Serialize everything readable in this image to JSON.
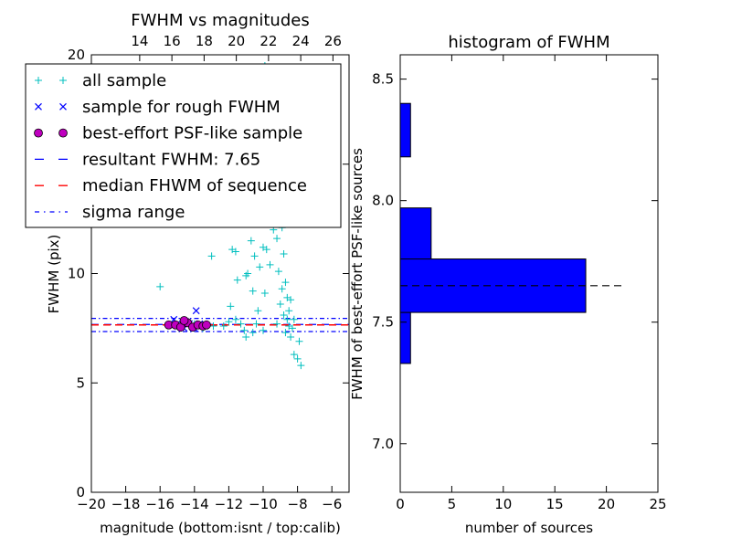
{
  "chart_data": [
    {
      "type": "scatter",
      "title": "FWHM vs magnitudes",
      "xlabel": "magnitude (bottom:isnt / top:calib)",
      "ylabel": "FWHM (pix)",
      "xlim": [
        -20,
        -5
      ],
      "ylim": [
        0,
        20
      ],
      "xticks": [
        "−20",
        "−18",
        "−16",
        "−14",
        "−12",
        "−10",
        "−8",
        "−6"
      ],
      "xtick_values": [
        -20,
        -18,
        -16,
        -14,
        -12,
        -10,
        -8,
        -6
      ],
      "yticks": [
        "0",
        "5",
        "10",
        "15",
        "20"
      ],
      "ytick_values": [
        0,
        5,
        10,
        15,
        20
      ],
      "top_axis": {
        "ticks": [
          "14",
          "16",
          "18",
          "20",
          "22",
          "24",
          "26"
        ],
        "tick_values": [
          14,
          16,
          18,
          20,
          22,
          24,
          26
        ],
        "xlim": [
          11,
          27
        ]
      },
      "legend_position": "top-left",
      "legend": [
        "all sample",
        "sample for rough FWHM",
        "best-effort PSF-like sample",
        "resultant FWHM: 7.65",
        "median FHWM of sequence",
        "sigma range"
      ],
      "colors": {
        "all_sample": "#00bfbf",
        "rough": "#0000ff",
        "best_face": "#bf00bf",
        "resultant_line": "#0000ff",
        "median_line": "#ff0000",
        "sigma_line": "#0000ff"
      },
      "series": [
        {
          "name": "all sample",
          "marker": "plus",
          "points": [
            [
              -16.0,
              9.4
            ],
            [
              -14.0,
              7.7
            ],
            [
              -13.5,
              7.5
            ],
            [
              -12.9,
              7.6
            ],
            [
              -13.0,
              10.8
            ],
            [
              -12.3,
              7.6
            ],
            [
              -11.9,
              8.5
            ],
            [
              -11.8,
              11.1
            ],
            [
              -11.6,
              11.0
            ],
            [
              -11.6,
              7.9
            ],
            [
              -11.5,
              9.7
            ],
            [
              -11.3,
              7.7
            ],
            [
              -11.1,
              7.4
            ],
            [
              -11.0,
              9.9
            ],
            [
              -10.9,
              10.0
            ],
            [
              -10.8,
              12.3
            ],
            [
              -10.7,
              11.5
            ],
            [
              -10.6,
              9.2
            ],
            [
              -10.5,
              10.8
            ],
            [
              -10.4,
              7.7
            ],
            [
              -10.3,
              8.3
            ],
            [
              -10.2,
              10.3
            ],
            [
              -10.1,
              12.5
            ],
            [
              -10.0,
              11.2
            ],
            [
              -10.0,
              7.4
            ],
            [
              -9.9,
              9.1
            ],
            [
              -9.8,
              11.1
            ],
            [
              -9.7,
              12.8
            ],
            [
              -9.6,
              10.4
            ],
            [
              -9.5,
              13.5
            ],
            [
              -9.4,
              12.0
            ],
            [
              -9.3,
              14.0
            ],
            [
              -9.2,
              11.6
            ],
            [
              -9.1,
              10.1
            ],
            [
              -9.0,
              8.6
            ],
            [
              -9.0,
              14.7
            ],
            [
              -8.9,
              9.3
            ],
            [
              -8.9,
              12.1
            ],
            [
              -8.8,
              10.9
            ],
            [
              -8.8,
              8.1
            ],
            [
              -8.7,
              9.6
            ],
            [
              -8.7,
              7.3
            ],
            [
              -8.6,
              8.9
            ],
            [
              -8.6,
              7.9
            ],
            [
              -8.5,
              8.3
            ],
            [
              -8.5,
              7.6
            ],
            [
              -8.4,
              8.8
            ],
            [
              -8.4,
              7.1
            ],
            [
              -8.3,
              7.5
            ],
            [
              -8.2,
              7.9
            ],
            [
              -8.2,
              6.3
            ],
            [
              -8.0,
              6.1
            ],
            [
              -7.9,
              6.9
            ],
            [
              -7.8,
              5.8
            ],
            [
              -9.5,
              19.2
            ],
            [
              -9.9,
              19.5
            ],
            [
              -11.0,
              7.1
            ],
            [
              -12.0,
              7.8
            ],
            [
              -10.6,
              7.3
            ],
            [
              -9.2,
              7.7
            ]
          ]
        },
        {
          "name": "sample for rough FWHM",
          "marker": "x",
          "points": [
            [
              -15.2,
              7.9
            ],
            [
              -15.0,
              7.7
            ],
            [
              -14.8,
              7.6
            ],
            [
              -14.5,
              7.8
            ],
            [
              -14.3,
              7.7
            ],
            [
              -14.0,
              7.5
            ],
            [
              -13.9,
              8.3
            ],
            [
              -13.7,
              7.7
            ],
            [
              -13.4,
              7.6
            ],
            [
              -14.6,
              7.5
            ]
          ]
        },
        {
          "name": "best-effort PSF-like sample",
          "marker": "circle",
          "points": [
            [
              -15.5,
              7.65
            ],
            [
              -15.1,
              7.65
            ],
            [
              -14.8,
              7.55
            ],
            [
              -14.4,
              7.75
            ],
            [
              -14.1,
              7.55
            ],
            [
              -13.8,
              7.65
            ],
            [
              -13.5,
              7.6
            ],
            [
              -13.3,
              7.65
            ],
            [
              -14.6,
              7.85
            ]
          ]
        }
      ],
      "lines": [
        {
          "name": "resultant FWHM: 7.65",
          "y": 7.65,
          "style": "dashed"
        },
        {
          "name": "median FHWM of sequence",
          "y": 7.65,
          "style": "dashed"
        },
        {
          "name": "sigma range",
          "y": 7.35,
          "style": "dashdot"
        },
        {
          "name": "sigma range",
          "y": 7.95,
          "style": "dashdot"
        }
      ]
    },
    {
      "type": "bar",
      "orientation": "horizontal",
      "title": "histogram of FWHM",
      "xlabel": "number of sources",
      "ylabel": "FWHM of best-effort PSF-like sources",
      "xlim": [
        0,
        25
      ],
      "ylim": [
        6.8,
        8.6
      ],
      "xticks": [
        "0",
        "5",
        "10",
        "15",
        "20",
        "25"
      ],
      "xtick_values": [
        0,
        5,
        10,
        15,
        20,
        25
      ],
      "yticks": [
        "7.0",
        "7.5",
        "8.0",
        "8.5"
      ],
      "ytick_values": [
        7.0,
        7.5,
        8.0,
        8.5
      ],
      "bar_color": "#0000ff",
      "bins": [
        {
          "low": 7.33,
          "high": 7.54,
          "count": 1
        },
        {
          "low": 7.54,
          "high": 7.76,
          "count": 18
        },
        {
          "low": 7.76,
          "high": 7.97,
          "count": 3
        },
        {
          "low": 8.18,
          "high": 8.4,
          "count": 1
        }
      ],
      "reference_line": {
        "y": 7.65,
        "x_end": 21.5,
        "style": "dashed"
      }
    }
  ]
}
